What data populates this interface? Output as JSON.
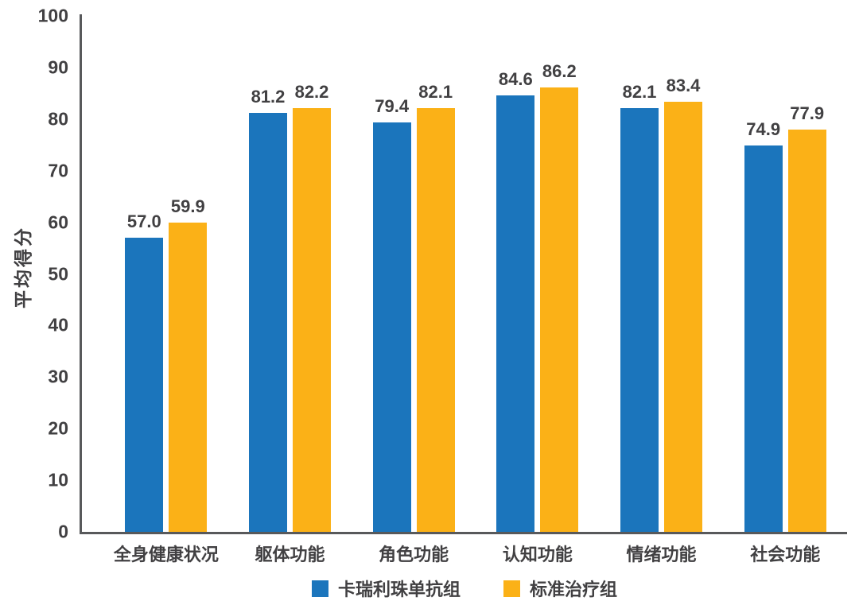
{
  "chart_data": {
    "type": "bar",
    "title": "",
    "xlabel": "",
    "ylabel": "平均得分",
    "ylim": [
      0,
      100
    ],
    "yticks": [
      0,
      10,
      20,
      30,
      40,
      50,
      60,
      70,
      80,
      90,
      100
    ],
    "grid": false,
    "legend_position": "bottom",
    "value_labels": true,
    "value_decimals": 1,
    "categories": [
      "全身健康状况",
      "躯体功能",
      "角色功能",
      "认知功能",
      "情绪功能",
      "社会功能"
    ],
    "series": [
      {
        "name": "卡瑞利珠单抗组",
        "color": "#1B75BC",
        "values": [
          57.0,
          81.2,
          79.4,
          84.6,
          82.1,
          74.9
        ]
      },
      {
        "name": "标准治疗组",
        "color": "#FBB117",
        "values": [
          59.9,
          82.2,
          82.1,
          86.2,
          83.4,
          77.9
        ]
      }
    ]
  },
  "colors": {
    "background": "#FFFFFF",
    "axis": "#58595B",
    "text": "#414042"
  }
}
